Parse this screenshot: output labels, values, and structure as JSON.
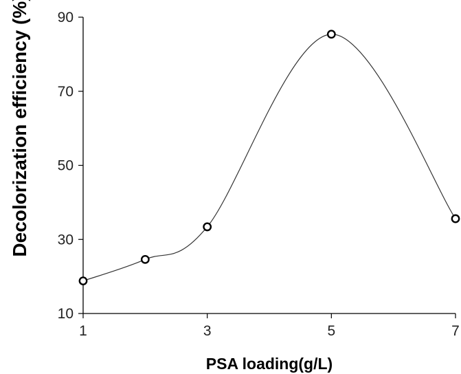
{
  "chart_data": {
    "type": "scatter",
    "title": "",
    "xlabel": "PSA loading(g/L)",
    "ylabel": "Decolorization efficiency (%)",
    "xlim": [
      1,
      7
    ],
    "ylim": [
      10,
      90
    ],
    "x_ticks": [
      "1",
      "3",
      "5",
      "7"
    ],
    "y_ticks": [
      "10",
      "30",
      "50",
      "70",
      "90"
    ],
    "grid": false,
    "legend": "none",
    "smoothed_line": true,
    "series": [
      {
        "x": [
          1,
          2,
          3,
          5,
          7
        ],
        "y": [
          18.8,
          24.6,
          33.4,
          85.4,
          35.6
        ]
      }
    ],
    "colors": {
      "line": "#333333",
      "marker_stroke": "#000000",
      "marker_fill": "#ffffff"
    }
  }
}
